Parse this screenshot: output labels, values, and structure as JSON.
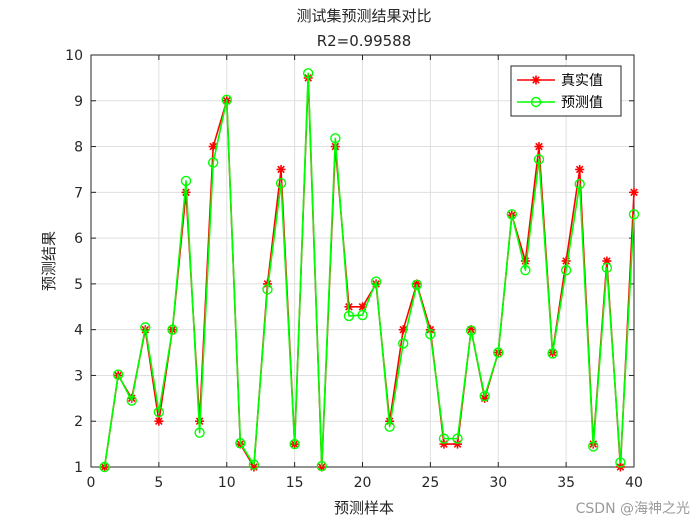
{
  "chart_data": {
    "type": "line",
    "title": "测试集预测结果对比",
    "subtitle": "R2=0.99588",
    "xlabel": "预测样本",
    "ylabel": "预测结果",
    "xlim": [
      0,
      40
    ],
    "ylim": [
      1,
      10
    ],
    "xticks": [
      0,
      5,
      10,
      15,
      20,
      25,
      30,
      35,
      40
    ],
    "yticks": [
      1,
      2,
      3,
      4,
      5,
      6,
      7,
      8,
      9,
      10
    ],
    "grid": true,
    "legend_position": "top-right",
    "x": [
      1,
      2,
      3,
      4,
      5,
      6,
      7,
      8,
      9,
      10,
      11,
      12,
      13,
      14,
      15,
      16,
      17,
      18,
      19,
      20,
      21,
      22,
      23,
      24,
      25,
      26,
      27,
      28,
      29,
      30,
      31,
      32,
      33,
      34,
      35,
      36,
      37,
      38,
      39,
      40
    ],
    "series": [
      {
        "name": "真实值",
        "color": "#ff0000",
        "marker": "asterisk",
        "values": [
          1,
          3,
          2.5,
          4,
          2,
          4,
          7,
          2,
          8,
          9,
          1.5,
          1,
          5,
          7.5,
          1.5,
          9.5,
          1,
          8,
          4.5,
          4.5,
          5,
          2,
          4,
          5,
          4,
          1.5,
          1.5,
          4,
          2.5,
          3.5,
          6.5,
          5.5,
          8,
          3.5,
          5.5,
          7.5,
          1.5,
          5.5,
          1,
          7
        ]
      },
      {
        "name": "预测值",
        "color": "#00ff00",
        "marker": "circle",
        "values": [
          1.0,
          3.02,
          2.45,
          4.05,
          2.2,
          4.0,
          7.25,
          1.75,
          7.65,
          9.02,
          1.52,
          1.05,
          4.88,
          7.2,
          1.5,
          9.6,
          1.02,
          8.18,
          4.3,
          4.32,
          5.05,
          1.88,
          3.7,
          4.98,
          3.9,
          1.62,
          1.62,
          3.98,
          2.55,
          3.5,
          6.52,
          5.3,
          7.72,
          3.48,
          5.3,
          7.18,
          1.45,
          5.35,
          1.1,
          6.52
        ]
      }
    ]
  },
  "watermark": "CSDN @海神之光"
}
